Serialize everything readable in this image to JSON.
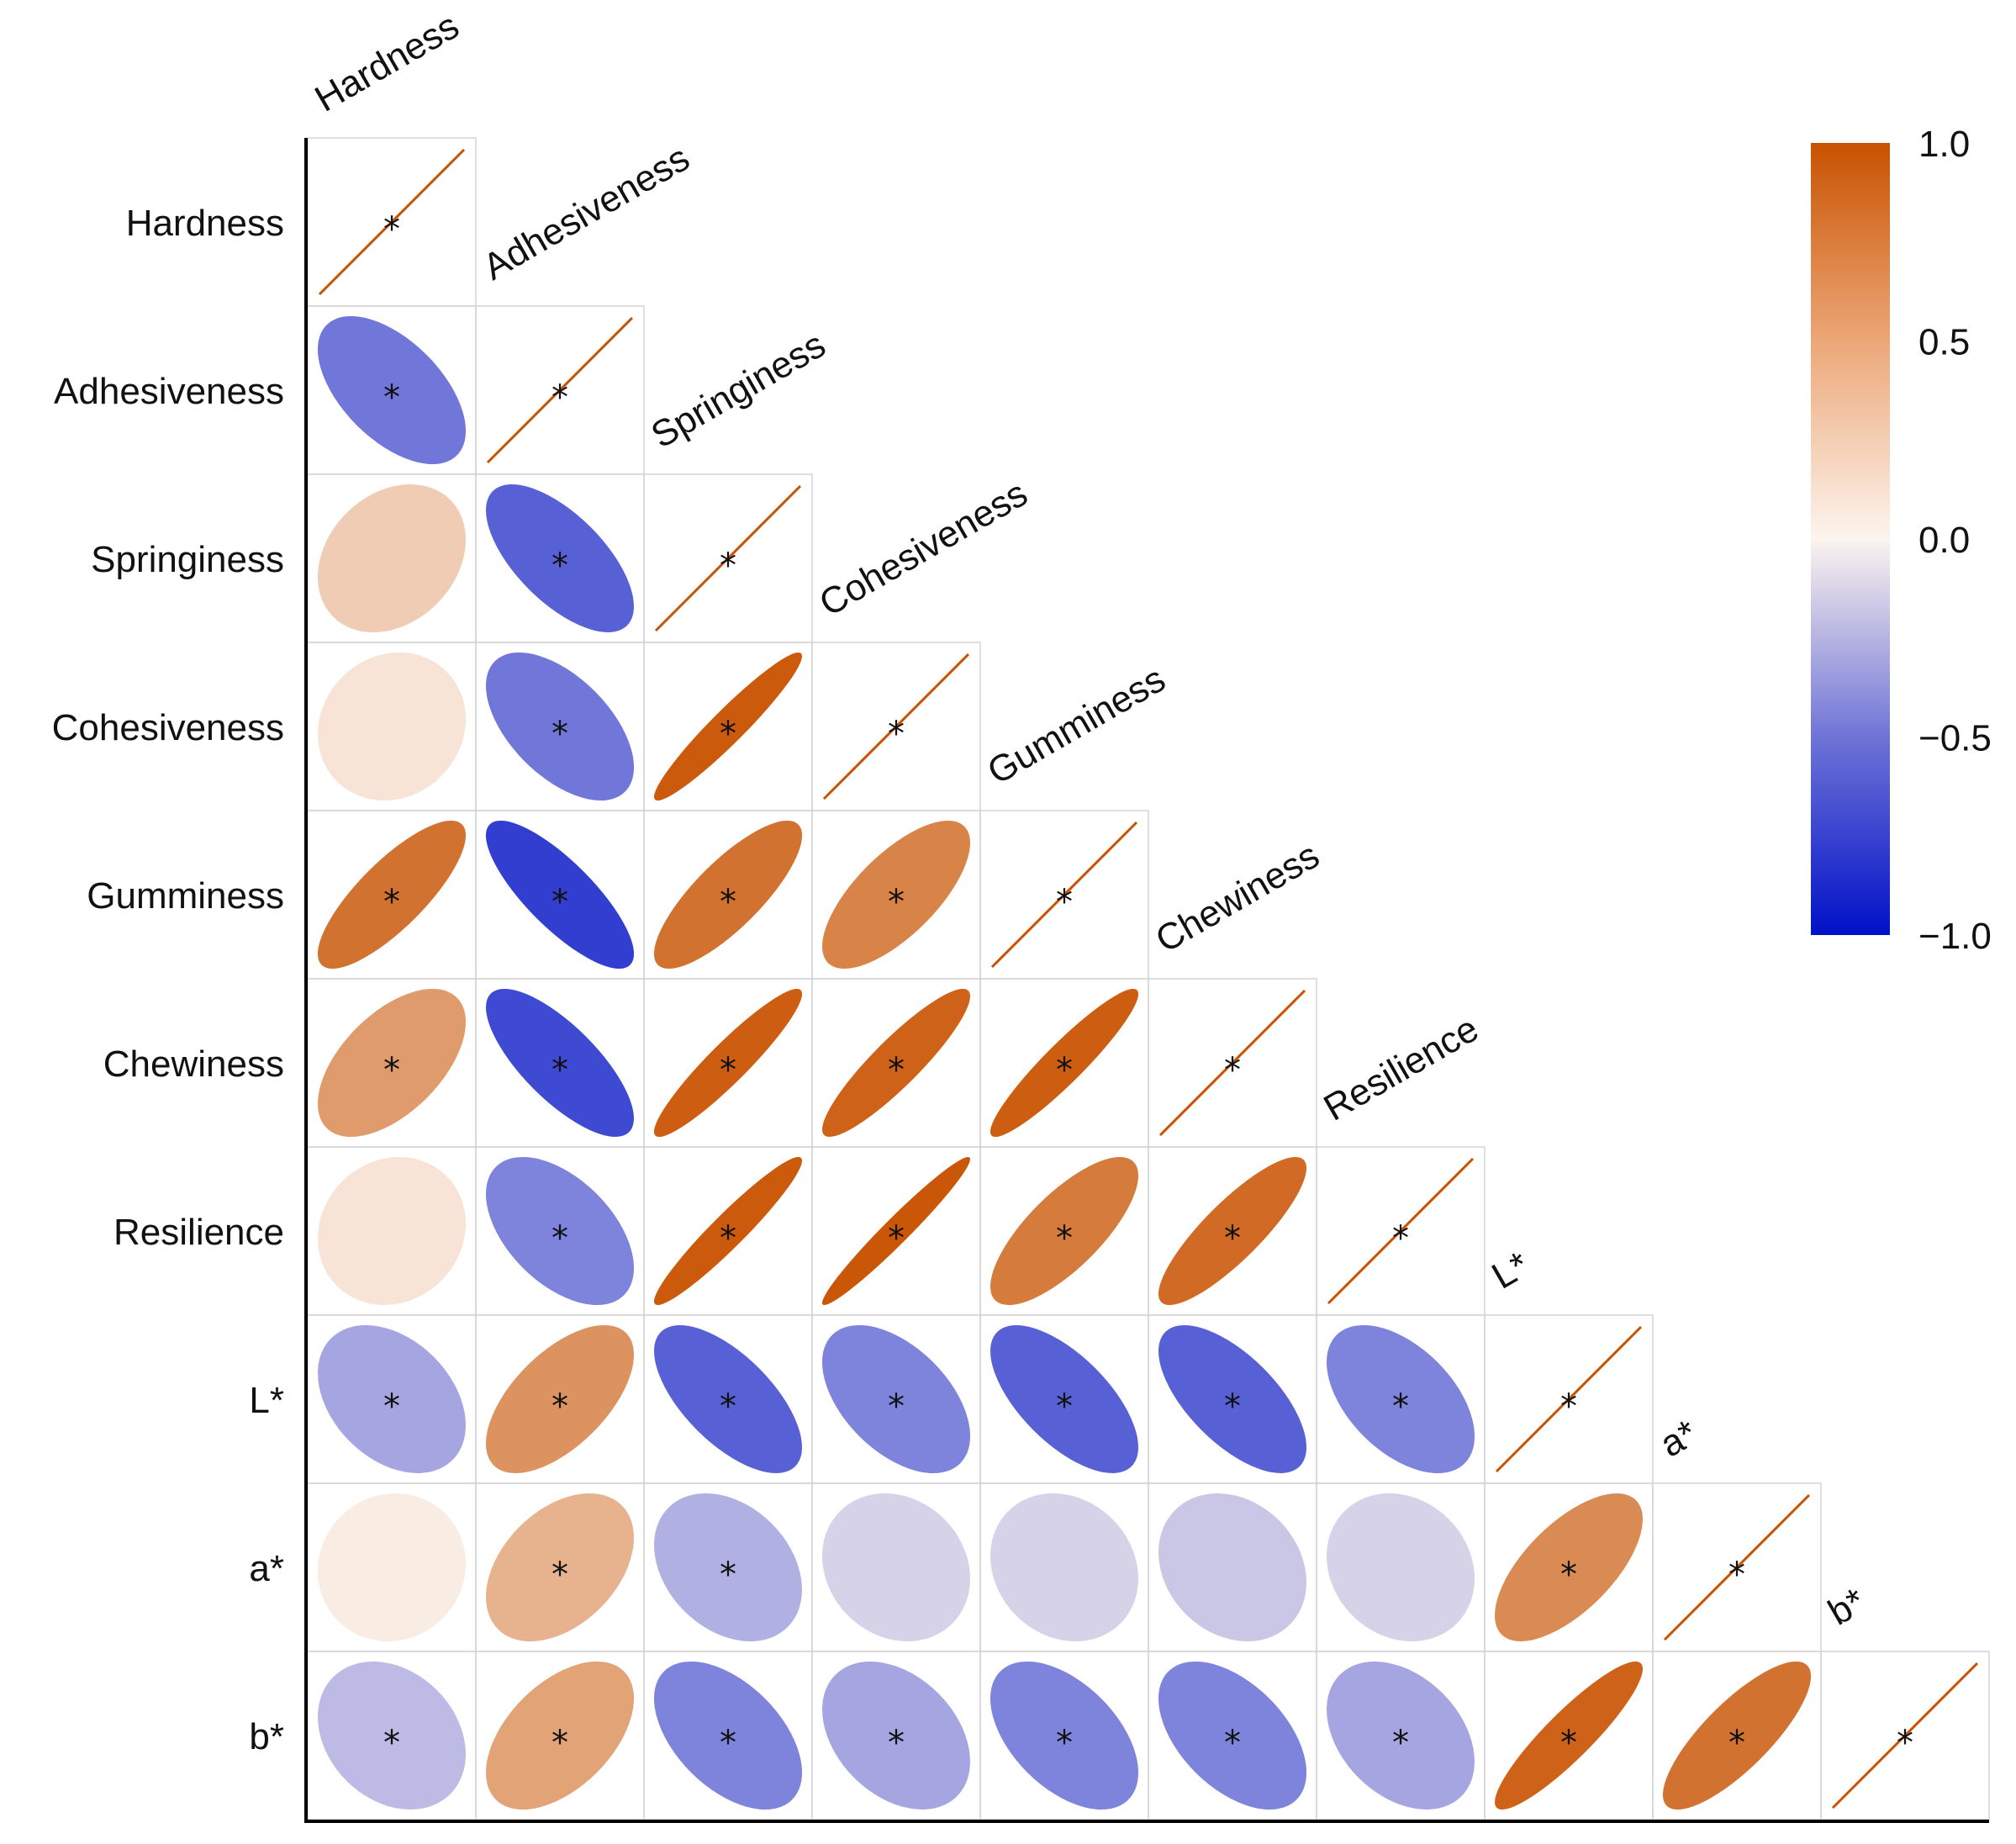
{
  "chart_data": {
    "type": "heatmap",
    "title": "",
    "variables": [
      "Hardness",
      "Adhesiveness",
      "Springiness",
      "Cohesiveness",
      "Gumminess",
      "Chewiness",
      "Resilience",
      "L*",
      "a*",
      "b*"
    ],
    "lower_triangle_correlations": [
      [
        1.0
      ],
      [
        -0.55,
        1.0
      ],
      [
        0.25,
        -0.65,
        1.0
      ],
      [
        0.1,
        -0.55,
        0.95,
        1.0
      ],
      [
        0.8,
        -0.8,
        0.8,
        0.7,
        1.0
      ],
      [
        0.55,
        -0.75,
        0.93,
        0.9,
        0.93,
        1.0
      ],
      [
        0.1,
        -0.5,
        0.95,
        0.97,
        0.75,
        0.85,
        1.0
      ],
      [
        -0.35,
        0.6,
        -0.65,
        -0.5,
        -0.65,
        -0.65,
        -0.5,
        1.0
      ],
      [
        0.05,
        0.4,
        -0.3,
        -0.15,
        -0.15,
        -0.2,
        -0.15,
        0.65,
        1.0
      ],
      [
        -0.25,
        0.5,
        -0.5,
        -0.35,
        -0.5,
        -0.5,
        -0.35,
        0.9,
        0.8,
        1.0
      ]
    ],
    "significance_markers": [
      [
        "*"
      ],
      [
        "*",
        "*"
      ],
      [
        "",
        "*",
        "*"
      ],
      [
        "",
        "*",
        "*",
        "*"
      ],
      [
        "*",
        "*",
        "*",
        "*",
        "*"
      ],
      [
        "*",
        "*",
        "*",
        "*",
        "*",
        "*"
      ],
      [
        "",
        "*",
        "*",
        "*",
        "*",
        "*",
        "*"
      ],
      [
        "*",
        "*",
        "*",
        "*",
        "*",
        "*",
        "*",
        "*"
      ],
      [
        "",
        "*",
        "*",
        "",
        "",
        "",
        "",
        "*",
        "*"
      ],
      [
        "*",
        "*",
        "*",
        "*",
        "*",
        "*",
        "*",
        "*",
        "*",
        "*"
      ]
    ],
    "colorbar": {
      "range": [
        -1.0,
        1.0
      ],
      "ticks": [
        1.0,
        0.5,
        0.0,
        -0.5,
        -1.0
      ],
      "tick_labels": [
        "1.0",
        "0.5",
        "0.0",
        "−0.5",
        "−1.0"
      ],
      "colors": {
        "negative": "#0011c8",
        "neutral": "#fcf4ee",
        "positive": "#c85200"
      }
    },
    "legend": "right"
  }
}
